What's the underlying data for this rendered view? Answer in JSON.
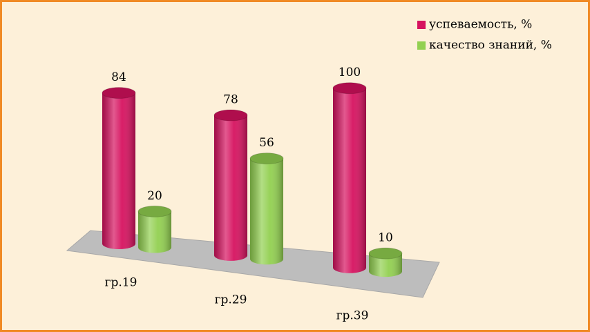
{
  "chart_data": {
    "type": "bar3d",
    "categories": [
      "гр.19",
      "гр.29",
      "гр.39"
    ],
    "series": [
      {
        "name": "успеваемость, %",
        "color": "#d6125f",
        "values": [
          84,
          78,
          100
        ]
      },
      {
        "name": "качество знаний, %",
        "color": "#92d050",
        "values": [
          20,
          56,
          10
        ]
      }
    ],
    "legend": "top-right"
  }
}
